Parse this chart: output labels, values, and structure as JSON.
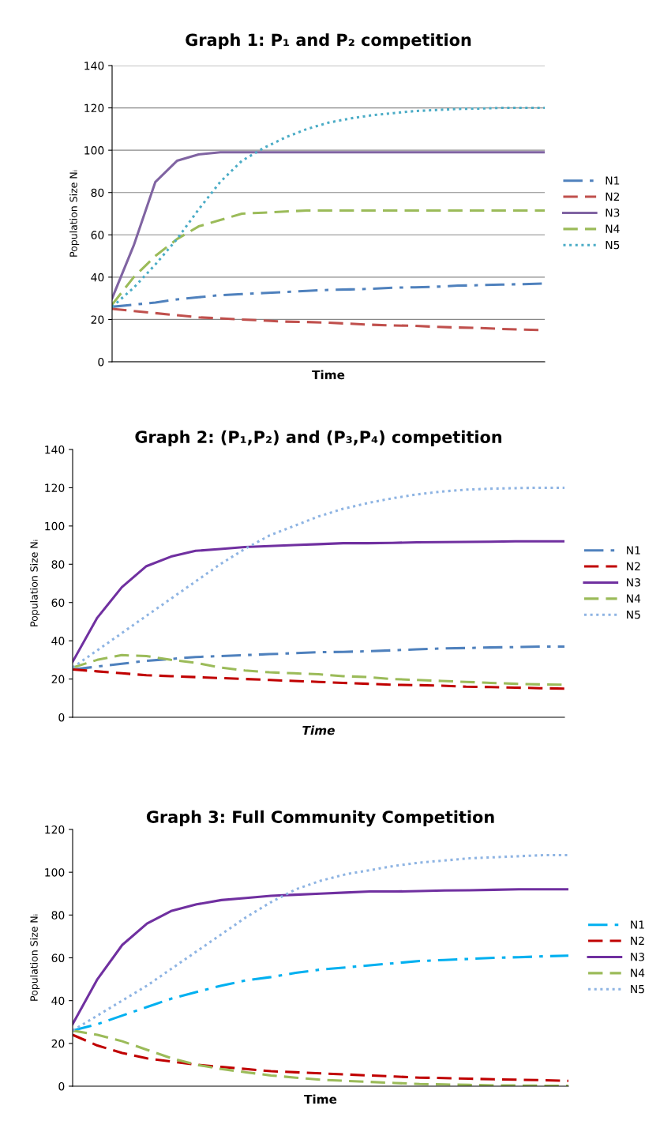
{
  "chart_data": [
    {
      "type": "line",
      "title": "Graph 1: P₁ and P₂ competition",
      "xlabel": "Time",
      "ylabel": "Population Size Nᵢ",
      "categories": [
        null,
        null,
        null,
        null,
        null,
        null,
        null,
        null,
        null,
        null,
        null,
        null,
        null,
        null,
        null,
        null,
        null,
        null,
        null,
        null,
        null
      ],
      "ylim": [
        0,
        140
      ],
      "yticks": [
        0,
        20,
        40,
        60,
        80,
        100,
        120,
        140
      ],
      "grid": "y",
      "legend": "right",
      "marker": "none",
      "series": [
        {
          "name": "N1",
          "color": "#4f81bd",
          "line_style": "dashdot",
          "values": [
            26,
            27,
            28,
            29.5,
            30.5,
            31.5,
            32,
            32.5,
            33,
            33.5,
            34,
            34.2,
            34.5,
            35,
            35.2,
            35.5,
            36,
            36.2,
            36.5,
            36.7,
            37
          ]
        },
        {
          "name": "N2",
          "color": "#c0504d",
          "line_style": "dashed",
          "values": [
            25,
            24,
            23,
            22,
            21,
            20.5,
            20,
            19.5,
            19,
            18.8,
            18.5,
            18,
            17.5,
            17.2,
            17,
            16.5,
            16.2,
            16,
            15.5,
            15.2,
            15
          ]
        },
        {
          "name": "N3",
          "color": "#8064a2",
          "line_style": "solid",
          "values": [
            30,
            55,
            85,
            95,
            98,
            99,
            99,
            99,
            99,
            99,
            99,
            99,
            99,
            99,
            99,
            99,
            99,
            99,
            99,
            99,
            99
          ]
        },
        {
          "name": "N4",
          "color": "#9bbb59",
          "line_style": "dashed",
          "values": [
            27,
            40,
            50,
            58,
            64,
            67,
            70,
            70.5,
            71,
            71.5,
            71.5,
            71.5,
            71.5,
            71.5,
            71.5,
            71.5,
            71.5,
            71.5,
            71.5,
            71.5,
            71.5
          ]
        },
        {
          "name": "N5",
          "color": "#4bacc6",
          "line_style": "dotted",
          "values": [
            26,
            35,
            46,
            58,
            72,
            85,
            95,
            101,
            106,
            110,
            113,
            115,
            116.5,
            117.5,
            118.5,
            119,
            119.5,
            119.7,
            120,
            120,
            120
          ]
        }
      ]
    },
    {
      "type": "line",
      "title": "Graph 2: (P₁,P₂) and (P₃,P₄) competition",
      "xlabel": "Time",
      "ylabel": "Population Size Nᵢ",
      "categories": [
        null,
        null,
        null,
        null,
        null,
        null,
        null,
        null,
        null,
        null,
        null,
        null,
        null,
        null,
        null,
        null,
        null,
        null,
        null,
        null,
        null
      ],
      "ylim": [
        0,
        140
      ],
      "yticks": [
        0,
        20,
        40,
        60,
        80,
        100,
        120,
        140
      ],
      "legend": "right",
      "marker": "none",
      "series": [
        {
          "name": "N1",
          "color": "#4f81bd",
          "line_style": "dashdot",
          "values": [
            25,
            26.5,
            28,
            29.5,
            30.5,
            31.5,
            32,
            32.5,
            33,
            33.5,
            34,
            34.2,
            34.5,
            35,
            35.5,
            36,
            36.2,
            36.5,
            36.7,
            37,
            37
          ]
        },
        {
          "name": "N2",
          "color": "#c00000",
          "line_style": "dashed",
          "values": [
            25,
            24,
            23,
            22,
            21.5,
            21,
            20.5,
            20,
            19.5,
            19,
            18.5,
            18,
            17.5,
            17,
            16.8,
            16.5,
            16,
            15.8,
            15.5,
            15.2,
            15
          ]
        },
        {
          "name": "N3",
          "color": "#7030a0",
          "line_style": "solid",
          "values": [
            29,
            52,
            68,
            79,
            84,
            87,
            88,
            89,
            89.5,
            90,
            90.5,
            91,
            91,
            91.2,
            91.5,
            91.6,
            91.7,
            91.8,
            92,
            92,
            92
          ]
        },
        {
          "name": "N4",
          "color": "#9bbb59",
          "line_style": "dashed",
          "values": [
            26,
            30,
            32.5,
            32,
            30,
            28.5,
            26,
            24.5,
            23.5,
            23,
            22.5,
            21.5,
            21,
            20,
            19.5,
            19,
            18.5,
            18,
            17.5,
            17.2,
            17
          ]
        },
        {
          "name": "N5",
          "color": "#8eb4e3",
          "line_style": "dotted",
          "values": [
            26,
            35,
            44,
            53,
            62,
            71,
            80,
            88,
            95,
            100,
            105,
            109,
            112,
            114.5,
            116.5,
            118,
            119,
            119.5,
            119.8,
            120,
            120
          ]
        }
      ]
    },
    {
      "type": "line",
      "title": "Graph 3: Full Community Competition",
      "xlabel": "Time",
      "ylabel": "Population Size Nᵢ",
      "categories": [
        null,
        null,
        null,
        null,
        null,
        null,
        null,
        null,
        null,
        null,
        null,
        null,
        null,
        null,
        null,
        null,
        null,
        null,
        null,
        null,
        null
      ],
      "ylim": [
        0,
        120
      ],
      "yticks": [
        0,
        20,
        40,
        60,
        80,
        100,
        120
      ],
      "legend": "right",
      "marker": "none",
      "series": [
        {
          "name": "N1",
          "color": "#00b0f0",
          "line_style": "dashdot",
          "values": [
            26,
            29,
            33,
            37,
            41,
            44,
            47,
            49.5,
            51,
            53,
            54.5,
            55.5,
            56.5,
            57.5,
            58.5,
            59,
            59.5,
            60,
            60.3,
            60.7,
            61
          ]
        },
        {
          "name": "N2",
          "color": "#c00000",
          "line_style": "dashed",
          "values": [
            24,
            19,
            15.5,
            13,
            11.5,
            10,
            9,
            8,
            7,
            6.5,
            6,
            5.5,
            5,
            4.5,
            4,
            3.8,
            3.5,
            3.2,
            3,
            2.8,
            2.5
          ]
        },
        {
          "name": "N3",
          "color": "#7030a0",
          "line_style": "solid",
          "values": [
            29,
            50,
            66,
            76,
            82,
            85,
            87,
            88,
            89,
            89.5,
            90,
            90.5,
            91,
            91,
            91.2,
            91.5,
            91.6,
            91.8,
            92,
            92,
            92
          ]
        },
        {
          "name": "N4",
          "color": "#9bbb59",
          "line_style": "dashed",
          "values": [
            26,
            24,
            21,
            17,
            13,
            10,
            8,
            6.5,
            5,
            4,
            3,
            2.5,
            2,
            1.5,
            1,
            0.8,
            0.6,
            0.4,
            0.3,
            0.2,
            0.2
          ]
        },
        {
          "name": "N5",
          "color": "#8eb4e3",
          "line_style": "dotted",
          "values": [
            26,
            33,
            40,
            47,
            55,
            63,
            71,
            79,
            86,
            92,
            96,
            99,
            101,
            103,
            104.5,
            105.5,
            106.5,
            107,
            107.5,
            108,
            108
          ]
        }
      ]
    }
  ]
}
